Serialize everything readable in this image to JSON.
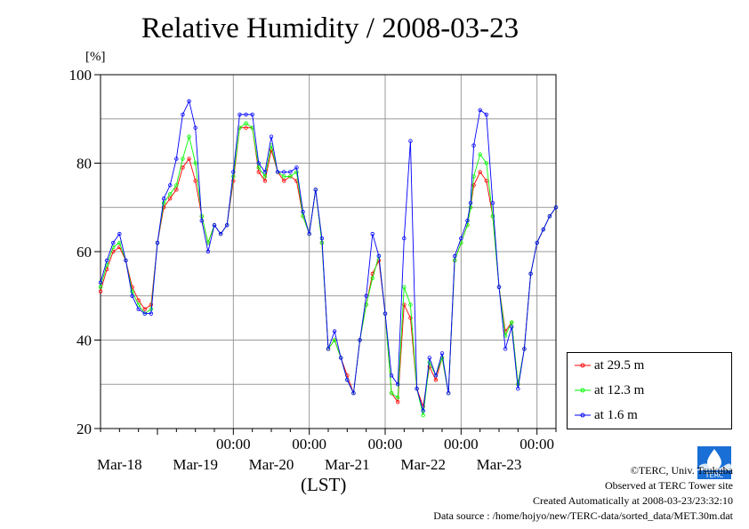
{
  "chart_data": {
    "type": "line",
    "title": "Relative Humidity / 2008-03-23",
    "ylabel": "[%]",
    "xlabel": "(LST)",
    "ylim": [
      20,
      100
    ],
    "yticks": [
      20,
      40,
      60,
      80,
      100
    ],
    "xlim": [
      -18,
      126
    ],
    "x_unit": "hours from 2008-03-18 00:00 LST",
    "x_tick_positions": [
      24,
      48,
      72,
      96,
      120
    ],
    "x_tick_labels": [
      "00:00",
      "00:00",
      "00:00",
      "00:00",
      "00:00"
    ],
    "x_day_labels": [
      "Mar-18",
      "Mar-19",
      "Mar-20",
      "Mar-21",
      "Mar-22",
      "Mar-23"
    ],
    "grid": true,
    "legend_position": "bottom-right outside",
    "x": [
      -18,
      -16,
      -14,
      -12,
      -10,
      -8,
      -6,
      -4,
      -2,
      0,
      2,
      4,
      6,
      8,
      10,
      12,
      14,
      16,
      18,
      20,
      22,
      24,
      26,
      28,
      30,
      32,
      34,
      36,
      38,
      40,
      42,
      44,
      46,
      48,
      50,
      52,
      54,
      56,
      58,
      60,
      62,
      64,
      66,
      68,
      70,
      72,
      74,
      76,
      78,
      80,
      82,
      84,
      86,
      88,
      90,
      92,
      94,
      96,
      98,
      99,
      100,
      102,
      104,
      106,
      108,
      110,
      112,
      114,
      116,
      118,
      120,
      122,
      124,
      126
    ],
    "series": [
      {
        "name": "at 29.5 m",
        "color": "#ff0000",
        "values": [
          51,
          56,
          60,
          61,
          58,
          52,
          49,
          47,
          48,
          62,
          70,
          72,
          74,
          79,
          81,
          76,
          68,
          62,
          66,
          64,
          66,
          76,
          88,
          88,
          88,
          78,
          76,
          83,
          78,
          76,
          77,
          76,
          68,
          64,
          74,
          62,
          38,
          40,
          36,
          32,
          28,
          40,
          48,
          55,
          58,
          46,
          28,
          26,
          48,
          45,
          29,
          25,
          34,
          31,
          36,
          28,
          58,
          62,
          66,
          70,
          75,
          78,
          76,
          68,
          52,
          42,
          44,
          30,
          38,
          55,
          62,
          65,
          68,
          70
        ]
      },
      {
        "name": "at 12.3 m",
        "color": "#00ff00",
        "values": [
          52,
          57,
          61,
          62,
          58,
          51,
          48,
          46,
          47,
          62,
          71,
          73,
          75,
          81,
          86,
          80,
          68,
          62,
          66,
          64,
          66,
          77,
          88,
          89,
          88,
          79,
          77,
          84,
          78,
          77,
          77,
          78,
          68,
          64,
          74,
          62,
          38,
          40,
          36,
          31,
          28,
          40,
          48,
          54,
          59,
          46,
          28,
          27,
          52,
          48,
          29,
          23,
          35,
          32,
          36,
          28,
          58,
          62,
          66,
          70,
          77,
          82,
          80,
          68,
          52,
          41,
          44,
          30,
          38,
          55,
          62,
          65,
          68,
          70
        ]
      },
      {
        "name": "at 1.6 m",
        "color": "#0000ff",
        "values": [
          53,
          58,
          62,
          64,
          58,
          50,
          47,
          46,
          46,
          62,
          72,
          75,
          81,
          91,
          94,
          88,
          67,
          60,
          66,
          64,
          66,
          78,
          91,
          91,
          91,
          80,
          78,
          86,
          78,
          78,
          78,
          79,
          69,
          64,
          74,
          63,
          38,
          42,
          36,
          31,
          28,
          40,
          50,
          64,
          59,
          46,
          32,
          30,
          63,
          85,
          29,
          24,
          36,
          32,
          37,
          28,
          59,
          63,
          67,
          71,
          84,
          92,
          91,
          71,
          52,
          38,
          43,
          29,
          38,
          55,
          62,
          65,
          68,
          70
        ]
      }
    ]
  },
  "legend": {
    "items": [
      {
        "label": "at 29.5 m",
        "color": "#ff0000"
      },
      {
        "label": "at 12.3 m",
        "color": "#00ff00"
      },
      {
        "label": "at 1.6 m",
        "color": "#0000ff"
      }
    ]
  },
  "logo": {
    "text": "TERC",
    "icon": "terc-logo-icon",
    "color": "#1a6fd6"
  },
  "footer": {
    "copyright": "©TERC, Univ. Tsukuba",
    "observed": "Observed at TERC Tower site",
    "created": "Created Automatically at 2008-03-23/23:32:10",
    "source": "Data source : /home/hojyo/new/TERC-data/sorted_data/MET.30m.dat"
  }
}
